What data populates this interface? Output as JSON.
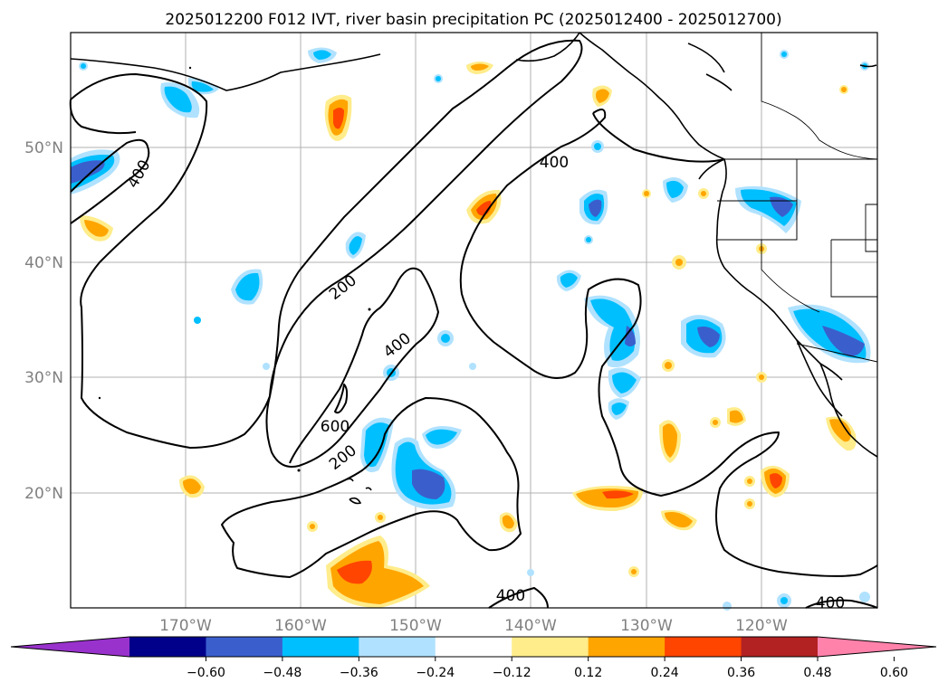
{
  "title": "2025012200 F012 IVT, river basin precipitation PC (2025012400 - 2025012700)",
  "axes": {
    "lon_ticks": [
      "170°W",
      "160°W",
      "150°W",
      "140°W",
      "130°W",
      "120°W"
    ],
    "lat_ticks": [
      "50°N",
      "40°N",
      "30°N",
      "20°N"
    ]
  },
  "colorbar": {
    "ticks": [
      "−0.60",
      "−0.48",
      "−0.36",
      "−0.24",
      "−0.12",
      "0.12",
      "0.24",
      "0.36",
      "0.48",
      "0.60"
    ],
    "colors": [
      "#9932cc",
      "#00008b",
      "#3a5fcd",
      "#00bfff",
      "#b0e2ff",
      "#ffffff",
      "#ffec8b",
      "#ffa500",
      "#ff4500",
      "#b22222",
      "#ff82ab"
    ]
  },
  "contour_labels": [
    {
      "text": "400",
      "value": 400
    },
    {
      "text": "400",
      "value": 400
    },
    {
      "text": "200",
      "value": 200
    },
    {
      "text": "400",
      "value": 400
    },
    {
      "text": "600",
      "value": 600
    },
    {
      "text": "200",
      "value": 200
    },
    {
      "text": "400",
      "value": 400
    },
    {
      "text": "400",
      "value": 400
    }
  ]
}
